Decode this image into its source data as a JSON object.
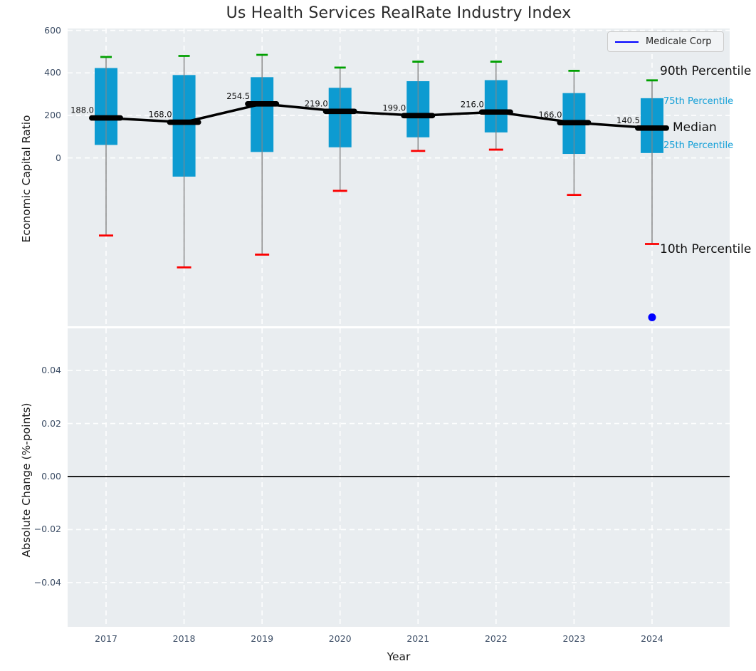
{
  "title": "Us Health Services RealRate Industry Index",
  "legend": {
    "label": "Medicale Corp",
    "line_color": "#0000ff"
  },
  "colors": {
    "box_fill": "#0d9bd1",
    "p90_cap": "#00a000",
    "p10_cap": "#fb0000",
    "whisker": "#878787",
    "median_line": "#000000",
    "company_point": "#0000ff",
    "panel_background": "#e9edf0",
    "tick_text": "#3d4e66",
    "cyan_annotation_text": "#129fd7",
    "zero_line": "#000000"
  },
  "chart_data": [
    {
      "type": "boxplot-timeseries",
      "title": "Us Health Services RealRate Industry Index",
      "ylabel": "Economic Capital Ratio",
      "ytick_labels": [
        "600",
        "400",
        "200",
        "0"
      ],
      "ytick_values": [
        600,
        400,
        200,
        0
      ],
      "ylim": [
        -800,
        605
      ],
      "grid": "white-dashed",
      "categories": [
        "2017",
        "2018",
        "2019",
        "2020",
        "2021",
        "2022",
        "2023",
        "2024"
      ],
      "series": [
        {
          "name": "90th Percentile",
          "values": [
            475,
            480,
            485,
            425,
            453,
            453,
            410,
            365
          ]
        },
        {
          "name": "75th Percentile",
          "values": [
            423,
            390,
            380,
            330,
            361,
            366,
            305,
            281
          ]
        },
        {
          "name": "Median",
          "values": [
            188.0,
            168.0,
            254.5,
            219.0,
            199.0,
            216.0,
            166.0,
            140.5
          ]
        },
        {
          "name": "25th Percentile",
          "values": [
            61,
            -88,
            28,
            50,
            97,
            120,
            19,
            23
          ]
        },
        {
          "name": "10th Percentile",
          "values": [
            -365,
            -515,
            -455,
            -155,
            33,
            39,
            -174,
            -405
          ]
        }
      ],
      "median_labels": [
        "188.0",
        "168.0",
        "254.5",
        "219.0",
        "199.0",
        "216.0",
        "166.0",
        "140.5"
      ],
      "company_point": {
        "name": "Medicale Corp",
        "category": "2024",
        "value": -750
      },
      "annotations": [
        {
          "text": "90th Percentile",
          "style": "big",
          "value": 475
        },
        {
          "text": "75th Percentile",
          "style": "small",
          "value": 281
        },
        {
          "text": "Median",
          "style": "big",
          "value": 140.5
        },
        {
          "text": "25th Percentile",
          "style": "small",
          "value": 23
        },
        {
          "text": "10th Percentile",
          "style": "big",
          "value": -405
        }
      ],
      "legend_entries": [
        "Medicale Corp"
      ],
      "legend_position": "upper right"
    },
    {
      "type": "line",
      "ylabel": "Absolute Change (%-points)",
      "xlabel": "Year",
      "ytick_labels": [
        "0.04",
        "0.02",
        "0.00",
        "−0.02",
        "−0.04"
      ],
      "ytick_values": [
        0.04,
        0.02,
        0.0,
        -0.02,
        -0.04
      ],
      "ylim": [
        -0.056,
        0.056
      ],
      "grid": "white-dashed",
      "x": [
        "2017",
        "2018",
        "2019",
        "2020",
        "2021",
        "2022",
        "2023",
        "2024"
      ],
      "series": [],
      "zero_line": 0.0
    }
  ]
}
